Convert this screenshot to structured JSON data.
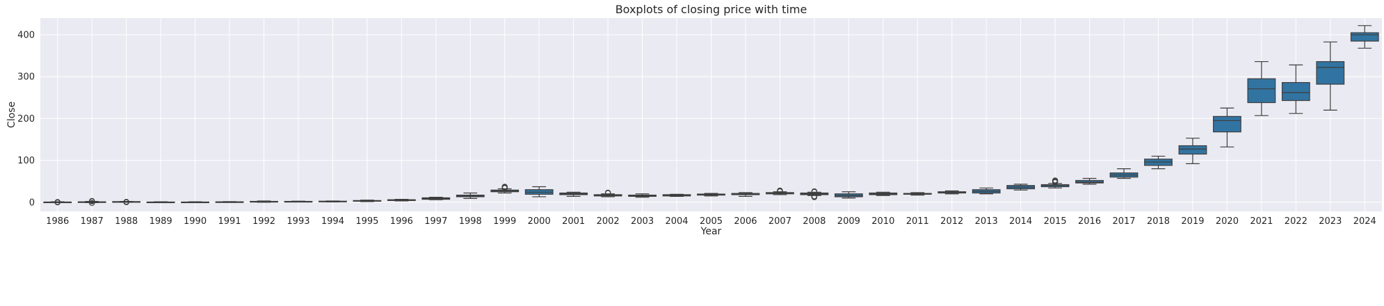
{
  "chart_data": {
    "type": "box",
    "title": "Boxplots of closing price with time",
    "xlabel": "Year",
    "ylabel": "Close",
    "ylim": [
      -22,
      440
    ],
    "yticks": [
      0,
      100,
      200,
      300,
      400
    ],
    "grid": true,
    "box_color": "#3274a1",
    "edge_color": "#3d3d3d",
    "background": "#eaeaf2",
    "categories": [
      "1986",
      "1987",
      "1988",
      "1989",
      "1990",
      "1991",
      "1992",
      "1993",
      "1994",
      "1995",
      "1996",
      "1997",
      "1998",
      "1999",
      "2000",
      "2001",
      "2002",
      "2003",
      "2004",
      "2005",
      "2006",
      "2007",
      "2008",
      "2009",
      "2010",
      "2011",
      "2012",
      "2013",
      "2014",
      "2015",
      "2016",
      "2017",
      "2018",
      "2019",
      "2020",
      "2021",
      "2022",
      "2023",
      "2024"
    ],
    "boxes": [
      {
        "whislo": -1,
        "q1": -0.5,
        "med": 0,
        "q3": 0.5,
        "whishi": 1,
        "fliers": [
          -0.5,
          0.5
        ]
      },
      {
        "whislo": -1,
        "q1": 0,
        "med": 0.5,
        "q3": 1,
        "whishi": 2,
        "fliers": [
          -2,
          2,
          3
        ]
      },
      {
        "whislo": 0,
        "q1": 0.5,
        "med": 1,
        "q3": 1.5,
        "whishi": 2,
        "fliers": [
          0,
          1
        ]
      },
      {
        "whislo": -1,
        "q1": -0.5,
        "med": 0,
        "q3": 0.5,
        "whishi": 1,
        "fliers": []
      },
      {
        "whislo": -1,
        "q1": -0.5,
        "med": 0,
        "q3": 0.5,
        "whishi": 1,
        "fliers": []
      },
      {
        "whislo": -0.5,
        "q1": 0,
        "med": 0.5,
        "q3": 1,
        "whishi": 1.5,
        "fliers": []
      },
      {
        "whislo": 0,
        "q1": 1,
        "med": 1.5,
        "q3": 2,
        "whishi": 3,
        "fliers": []
      },
      {
        "whislo": 0.5,
        "q1": 1,
        "med": 1.5,
        "q3": 2,
        "whishi": 2.5,
        "fliers": []
      },
      {
        "whislo": 0.5,
        "q1": 1.5,
        "med": 2,
        "q3": 2.5,
        "whishi": 3,
        "fliers": []
      },
      {
        "whislo": 1.5,
        "q1": 2.5,
        "med": 3,
        "q3": 4,
        "whishi": 5,
        "fliers": []
      },
      {
        "whislo": 3,
        "q1": 4,
        "med": 5,
        "q3": 6,
        "whishi": 7,
        "fliers": []
      },
      {
        "whislo": 6,
        "q1": 7,
        "med": 8.5,
        "q3": 10.5,
        "whishi": 12,
        "fliers": []
      },
      {
        "whislo": 9,
        "q1": 13,
        "med": 15,
        "q3": 17,
        "whishi": 22,
        "fliers": []
      },
      {
        "whislo": 22,
        "q1": 25,
        "med": 27,
        "q3": 29,
        "whishi": 32,
        "fliers": [
          35,
          36,
          37,
          34
        ]
      },
      {
        "whislo": 13,
        "q1": 19,
        "med": 24,
        "q3": 30,
        "whishi": 37,
        "fliers": []
      },
      {
        "whislo": 14,
        "q1": 18,
        "med": 20,
        "q3": 22,
        "whishi": 24,
        "fliers": []
      },
      {
        "whislo": 13,
        "q1": 15,
        "med": 16,
        "q3": 18,
        "whishi": 20,
        "fliers": [
          22,
          23
        ]
      },
      {
        "whislo": 12,
        "q1": 14,
        "med": 15.5,
        "q3": 17,
        "whishi": 20,
        "fliers": []
      },
      {
        "whislo": 14,
        "q1": 15,
        "med": 16.5,
        "q3": 18,
        "whishi": 19,
        "fliers": []
      },
      {
        "whislo": 15,
        "q1": 17,
        "med": 18,
        "q3": 19.5,
        "whishi": 21,
        "fliers": []
      },
      {
        "whislo": 14,
        "q1": 18,
        "med": 19,
        "q3": 21,
        "whishi": 23,
        "fliers": []
      },
      {
        "whislo": 18,
        "q1": 20,
        "med": 22,
        "q3": 23,
        "whishi": 25,
        "fliers": [
          26,
          27,
          28
        ]
      },
      {
        "whislo": 16,
        "q1": 18,
        "med": 20,
        "q3": 22,
        "whishi": 24,
        "fliers": [
          12,
          13,
          14,
          25,
          26
        ]
      },
      {
        "whislo": 10,
        "q1": 13,
        "med": 16,
        "q3": 20,
        "whishi": 25,
        "fliers": []
      },
      {
        "whislo": 16,
        "q1": 18,
        "med": 20,
        "q3": 22,
        "whishi": 24,
        "fliers": []
      },
      {
        "whislo": 17,
        "q1": 19,
        "med": 20,
        "q3": 21,
        "whishi": 23,
        "fliers": []
      },
      {
        "whislo": 20,
        "q1": 22,
        "med": 24,
        "q3": 25,
        "whishi": 27,
        "fliers": []
      },
      {
        "whislo": 20,
        "q1": 22,
        "med": 26,
        "q3": 30,
        "whishi": 34,
        "fliers": []
      },
      {
        "whislo": 29,
        "q1": 32,
        "med": 36,
        "q3": 40,
        "whishi": 43,
        "fliers": []
      },
      {
        "whislo": 34,
        "q1": 37,
        "med": 40,
        "q3": 42,
        "whishi": 45,
        "fliers": [
          48,
          50,
          52
        ]
      },
      {
        "whislo": 43,
        "q1": 46,
        "med": 48,
        "q3": 52,
        "whishi": 57,
        "fliers": []
      },
      {
        "whislo": 57,
        "q1": 60,
        "med": 65,
        "q3": 70,
        "whishi": 80,
        "fliers": []
      },
      {
        "whislo": 80,
        "q1": 88,
        "med": 96,
        "q3": 103,
        "whishi": 110,
        "fliers": []
      },
      {
        "whislo": 92,
        "q1": 115,
        "med": 127,
        "q3": 135,
        "whishi": 153,
        "fliers": []
      },
      {
        "whislo": 132,
        "q1": 168,
        "med": 195,
        "q3": 205,
        "whishi": 225,
        "fliers": []
      },
      {
        "whislo": 207,
        "q1": 238,
        "med": 271,
        "q3": 295,
        "whishi": 336,
        "fliers": []
      },
      {
        "whislo": 212,
        "q1": 243,
        "med": 262,
        "q3": 286,
        "whishi": 328,
        "fliers": []
      },
      {
        "whislo": 220,
        "q1": 282,
        "med": 322,
        "q3": 336,
        "whishi": 383,
        "fliers": []
      },
      {
        "whislo": 368,
        "q1": 385,
        "med": 400,
        "q3": 405,
        "whishi": 422,
        "fliers": []
      }
    ]
  }
}
